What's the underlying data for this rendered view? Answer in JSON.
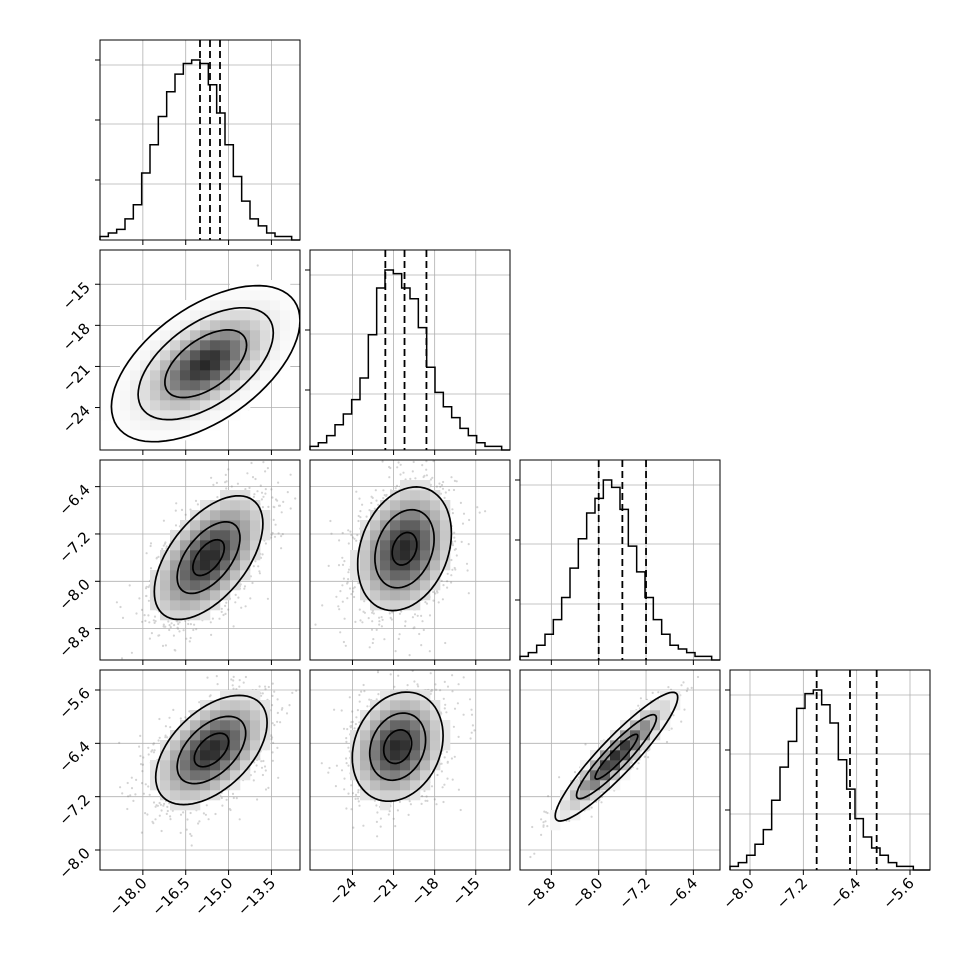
{
  "chart_data": {
    "type": "corner",
    "parameters": 4,
    "grid": true,
    "colors": {
      "axes": "#000000",
      "grid": "#b0b0b0",
      "hist": "#000000",
      "scatter": "#808080",
      "density": "#000000"
    },
    "axes": [
      {
        "ticks": [
          -18.0,
          -16.5,
          -15.0,
          -13.5
        ],
        "tick_labels": [
          "−18.0",
          "−16.5",
          "−15.0",
          "−13.5"
        ],
        "range": [
          -19.5,
          -12.5
        ]
      },
      {
        "ticks": [
          -24,
          -21,
          -18,
          -15
        ],
        "tick_labels": [
          "−24",
          "−21",
          "−18",
          "−15"
        ],
        "range": [
          -27.1,
          -12.5
        ]
      },
      {
        "ticks": [
          -8.8,
          -8.0,
          -7.2,
          -6.4
        ],
        "tick_labels": [
          "−8.8",
          "−8.0",
          "−7.2",
          "−6.4"
        ],
        "range": [
          -9.33,
          -5.95
        ]
      },
      {
        "ticks": [
          -8.0,
          -7.2,
          -6.4,
          -5.6
        ],
        "tick_labels": [
          "−8.0",
          "−7.2",
          "−6.4",
          "−5.6"
        ],
        "range": [
          -8.3,
          -5.3
        ]
      }
    ],
    "marginals": [
      {
        "quantiles": [
          -16.0,
          -15.65,
          -15.3
        ],
        "counts": [
          1,
          2,
          3,
          6,
          10,
          19,
          27,
          35,
          42,
          47,
          50,
          51,
          50,
          44,
          36,
          27,
          18,
          11,
          6,
          4,
          2,
          1,
          1,
          0
        ]
      },
      {
        "quantiles": [
          -21.6,
          -20.2,
          -18.6
        ],
        "counts": [
          1,
          2,
          4,
          7,
          10,
          14,
          20,
          32,
          45,
          50,
          49,
          45,
          42,
          34,
          23,
          16,
          12,
          9,
          6,
          4,
          2,
          1,
          1,
          0
        ]
      },
      {
        "quantiles": [
          -8.0,
          -7.6,
          -7.2
        ],
        "counts": [
          1,
          2,
          4,
          7,
          11,
          17,
          25,
          33,
          40,
          44,
          49,
          47,
          41,
          31,
          24,
          17,
          11,
          7,
          4,
          3,
          2,
          1,
          1,
          0
        ]
      },
      {
        "quantiles": [
          -7.0,
          -6.5,
          -6.1
        ],
        "counts": [
          1,
          2,
          4,
          7,
          11,
          19,
          28,
          35,
          44,
          48,
          49,
          45,
          40,
          30,
          22,
          14,
          9,
          6,
          4,
          2,
          1,
          1,
          0,
          0
        ]
      }
    ],
    "pairs": [
      {
        "x": 0,
        "y": 1,
        "center": [
          -15.8,
          -20.8
        ],
        "sigma_x": 1.1,
        "sigma_y": 1.9,
        "rho": 0.55,
        "levels": [
          1.3,
          2.15,
          3.0
        ]
      },
      {
        "x": 0,
        "y": 2,
        "center": [
          -15.7,
          -7.6
        ],
        "sigma_x": 1.0,
        "sigma_y": 0.55,
        "rho": 0.55,
        "levels": [
          0.55,
          1.1,
          1.9
        ]
      },
      {
        "x": 1,
        "y": 2,
        "center": [
          -20.2,
          -7.45
        ],
        "sigma_x": 1.8,
        "sigma_y": 0.55,
        "rho": 0.25,
        "levels": [
          0.5,
          1.2,
          1.9
        ]
      },
      {
        "x": 0,
        "y": 3,
        "center": [
          -15.6,
          -6.5
        ],
        "sigma_x": 1.0,
        "sigma_y": 0.42,
        "rho": 0.5,
        "levels": [
          0.6,
          1.2,
          1.95
        ]
      },
      {
        "x": 1,
        "y": 3,
        "center": [
          -20.7,
          -6.45
        ],
        "sigma_x": 1.7,
        "sigma_y": 0.42,
        "rho": 0.2,
        "levels": [
          0.6,
          1.2,
          1.95
        ]
      },
      {
        "x": 2,
        "y": 3,
        "center": [
          -7.7,
          -6.6
        ],
        "sigma_x": 0.45,
        "sigma_y": 0.42,
        "rho": 0.92,
        "levels": [
          0.8,
          1.5,
          2.3
        ]
      }
    ]
  }
}
